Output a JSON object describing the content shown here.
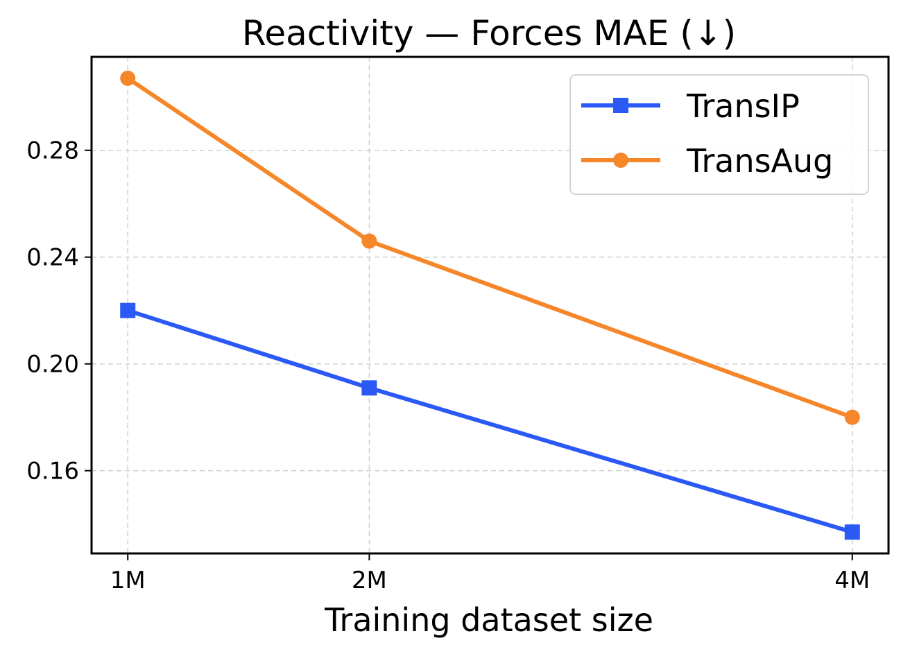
{
  "chart_data": {
    "type": "line",
    "title": "Reactivity — Forces MAE (↓)",
    "xlabel": "Training dataset size",
    "ylabel": "",
    "x": [
      1,
      2,
      4
    ],
    "x_tick_labels": [
      "1M",
      "2M",
      "4M"
    ],
    "xlim": [
      0.85,
      4.15
    ],
    "ylim": [
      0.129,
      0.315
    ],
    "y_ticks": [
      0.16,
      0.2,
      0.24,
      0.28
    ],
    "y_tick_labels": [
      "0.16",
      "0.20",
      "0.24",
      "0.28"
    ],
    "grid": true,
    "legend_position": "top-right",
    "series": [
      {
        "name": "TransIP",
        "color": "#2a59f5",
        "marker": "square",
        "values": [
          0.22,
          0.191,
          0.137
        ]
      },
      {
        "name": "TransAug",
        "color": "#f5872a",
        "marker": "circle",
        "values": [
          0.307,
          0.246,
          0.18
        ]
      }
    ]
  }
}
